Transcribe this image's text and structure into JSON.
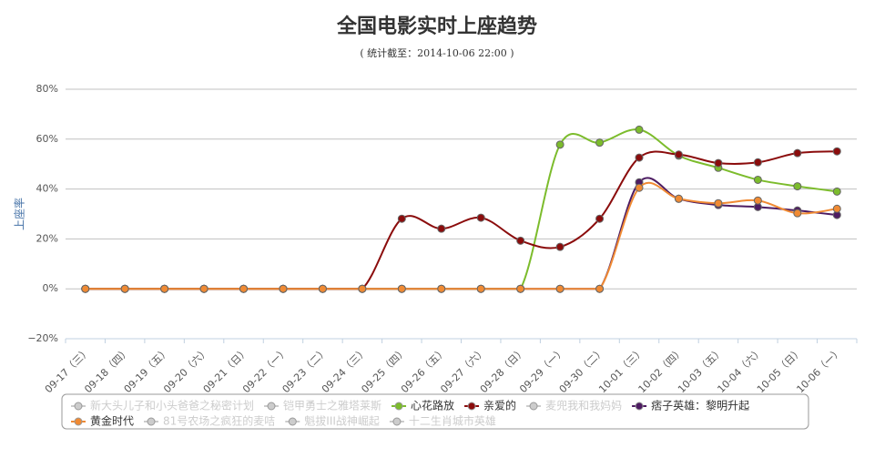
{
  "chart_data": {
    "type": "line",
    "title": "全国电影实时上座趋势",
    "subtitle": "( 统计截至：2014-10-06 22:00 )",
    "y_label": "上座率",
    "categories": [
      "09-17（三）",
      "09-18（四）",
      "09-19（五）",
      "09-20（六）",
      "09-21（日）",
      "09-22（一）",
      "09-23（二）",
      "09-24（三）",
      "09-25（四）",
      "09-26（五）",
      "09-27（六）",
      "09-28（日）",
      "09-29（一）",
      "09-30（二）",
      "10-01（三）",
      "10-02（四）",
      "10-03（五）",
      "10-04（六）",
      "10-05（日）",
      "10-06（一）"
    ],
    "ylim": [
      -20,
      80
    ],
    "yticks": [
      {
        "value": -20,
        "label": "−20%"
      },
      {
        "value": 0,
        "label": "0%"
      },
      {
        "value": 20,
        "label": "20%"
      },
      {
        "value": 40,
        "label": "40%"
      },
      {
        "value": 60,
        "label": "60%"
      },
      {
        "value": 80,
        "label": "80%"
      }
    ],
    "grid": true,
    "series": [
      {
        "name": "新大头儿子和小头爸爸之秘密计划",
        "color": "#cccccc",
        "visible": false
      },
      {
        "name": "铠甲勇士之雅塔莱斯",
        "color": "#cccccc",
        "visible": false
      },
      {
        "name": "心花路放",
        "color": "#7cbc2c",
        "visible": true,
        "values": [
          0,
          0,
          0,
          0,
          0,
          0,
          0,
          0,
          0,
          0,
          0,
          0,
          57.8,
          58.6,
          63.8,
          53.4,
          48.5,
          43.7,
          41.1,
          39
        ]
      },
      {
        "name": "亲爱的",
        "color": "#8b0c0c",
        "visible": true,
        "values": [
          0,
          0,
          0,
          0,
          0,
          0,
          0,
          0,
          28.1,
          24.1,
          28.5,
          19.3,
          16.8,
          28.1,
          52.6,
          53.8,
          50.4,
          50.7,
          54.4,
          55.1
        ]
      },
      {
        "name": "麦兜我和我妈妈",
        "color": "#cccccc",
        "visible": false
      },
      {
        "name": "痞子英雄：黎明升起",
        "color": "#4d1c62",
        "visible": true,
        "values": [
          0,
          0,
          0,
          0,
          0,
          0,
          0,
          0,
          0,
          0,
          0,
          0,
          0,
          0,
          42.7,
          36.1,
          33.6,
          32.8,
          31.4,
          29.6
        ]
      },
      {
        "name": "黄金时代",
        "color": "#f08a33",
        "visible": true,
        "values": [
          0,
          0,
          0,
          0,
          0,
          0,
          0,
          0,
          0,
          0,
          0,
          0,
          0,
          0,
          40.5,
          36.1,
          34.3,
          35.4,
          30.3,
          32.1
        ]
      },
      {
        "name": "81号农场之疯狂的麦咭",
        "color": "#cccccc",
        "visible": false
      },
      {
        "name": "魁拔III战神崛起",
        "color": "#cccccc",
        "visible": false
      },
      {
        "name": "十二生肖城市英雄",
        "color": "#cccccc",
        "visible": false
      }
    ]
  }
}
